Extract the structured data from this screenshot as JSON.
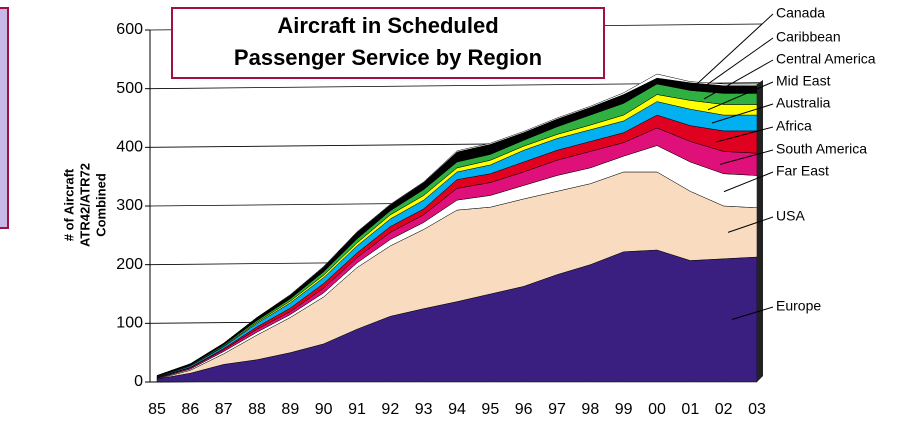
{
  "chart_data": {
    "type": "stacked_area",
    "title": [
      "Aircraft in Scheduled",
      "Passenger Service by Region"
    ],
    "y_label": [
      "# of Aircraft",
      "ATR42/ATR72",
      "Combined"
    ],
    "categories": [
      "85",
      "86",
      "87",
      "88",
      "89",
      "90",
      "91",
      "92",
      "93",
      "94",
      "95",
      "96",
      "97",
      "98",
      "99",
      "00",
      "01",
      "02",
      "03"
    ],
    "ylim": [
      0,
      600
    ],
    "yticks": [
      0,
      100,
      200,
      300,
      400,
      500,
      600
    ],
    "grid": true,
    "series": [
      {
        "name": "Europe",
        "color": "#3a1f80",
        "values": [
          5,
          15,
          30,
          38,
          50,
          65,
          90,
          112,
          125,
          137,
          150,
          163,
          183,
          200,
          222,
          225,
          207,
          210,
          213
        ]
      },
      {
        "name": "USA",
        "color": "#f9dcbf",
        "values": [
          0,
          5,
          18,
          42,
          60,
          80,
          105,
          120,
          135,
          156,
          148,
          149,
          142,
          138,
          136,
          133,
          118,
          90,
          84
        ]
      },
      {
        "name": "Far East",
        "color": "#ffffff",
        "values": [
          1,
          2,
          4,
          5,
          5,
          7,
          8,
          11,
          12,
          17,
          20,
          23,
          27,
          27,
          27,
          45,
          50,
          55,
          55
        ]
      },
      {
        "name": "South America",
        "color": "#e0107a",
        "values": [
          1,
          2,
          3,
          5,
          5,
          8,
          9,
          12,
          13,
          20,
          22,
          23,
          26,
          28,
          23,
          30,
          35,
          38,
          38
        ]
      },
      {
        "name": "Africa",
        "color": "#e00020",
        "values": [
          1,
          1,
          2,
          4,
          6,
          8,
          8,
          10,
          10,
          15,
          15,
          17,
          17,
          17,
          17,
          22,
          27,
          35,
          38
        ]
      },
      {
        "name": "Australia",
        "color": "#00b0f0",
        "values": [
          1,
          2,
          3,
          6,
          9,
          10,
          12,
          13,
          15,
          13,
          15,
          20,
          20,
          20,
          20,
          23,
          28,
          27,
          27
        ]
      },
      {
        "name": "Mid East",
        "color": "#ffff00",
        "values": [
          0,
          1,
          1,
          2,
          3,
          4,
          5,
          7,
          8,
          7,
          8,
          7,
          7,
          8,
          10,
          12,
          15,
          18,
          18
        ]
      },
      {
        "name": "Central America",
        "color": "#30b040",
        "values": [
          1,
          1,
          2,
          3,
          4,
          6,
          7,
          7,
          10,
          10,
          10,
          10,
          13,
          17,
          20,
          18,
          17,
          19,
          19
        ]
      },
      {
        "name": "Caribbean",
        "color": "#000000",
        "values": [
          1,
          2,
          3,
          5,
          6,
          8,
          11,
          10,
          12,
          17,
          17,
          13,
          13,
          13,
          15,
          10,
          13,
          13,
          13
        ]
      },
      {
        "name": "Canada",
        "color": "#ffffff",
        "values": [
          0,
          0,
          0,
          0,
          1,
          1,
          1,
          1,
          1,
          2,
          2,
          2,
          2,
          2,
          3,
          7,
          2,
          3,
          3
        ]
      }
    ]
  }
}
